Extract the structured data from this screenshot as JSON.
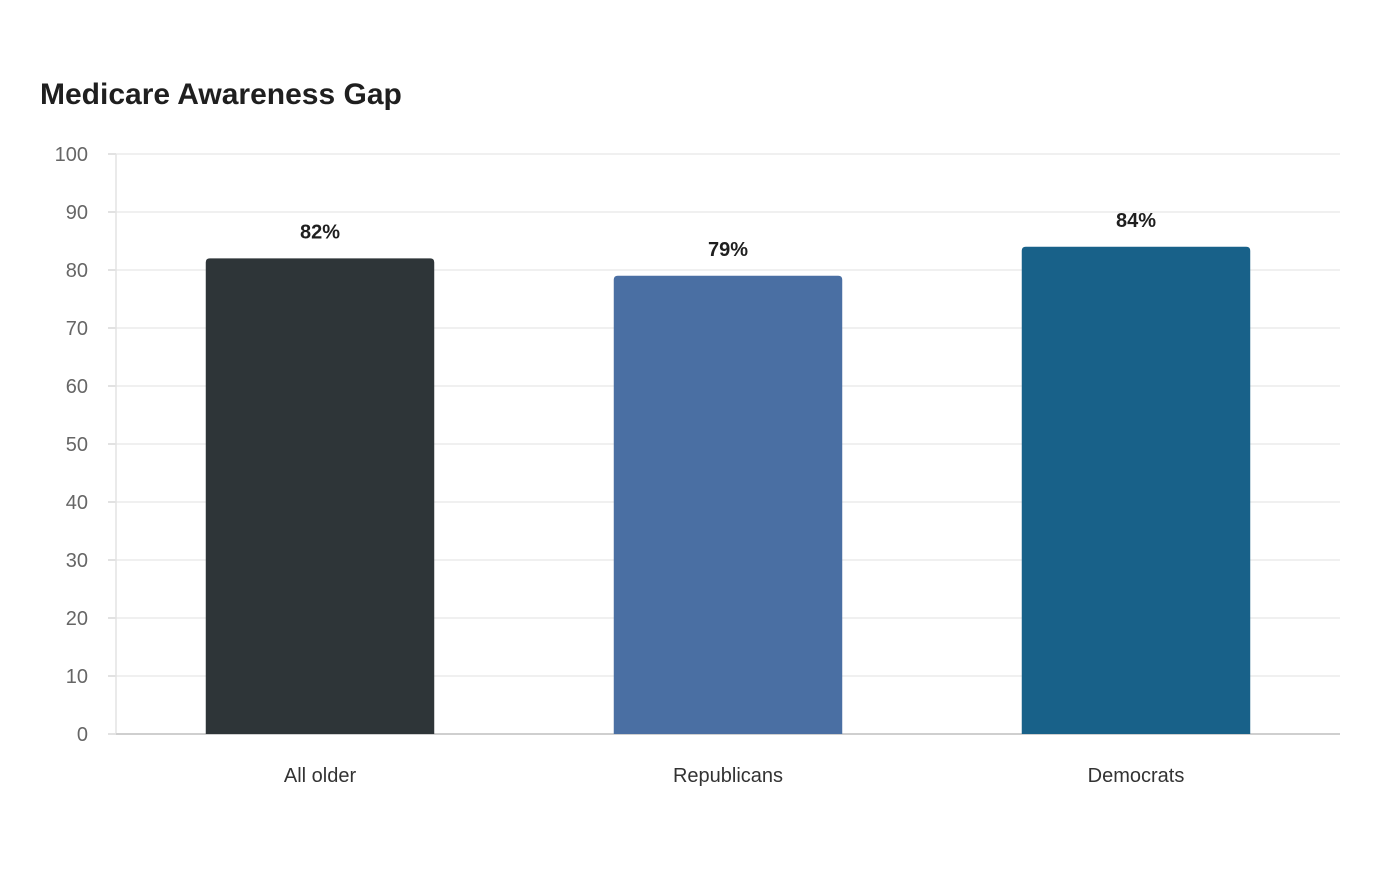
{
  "chart_data": {
    "type": "bar",
    "title": "Medicare Awareness Gap",
    "xlabel": "",
    "ylabel": "",
    "categories": [
      "All older",
      "Republicans",
      "Democrats"
    ],
    "values": [
      82,
      79,
      84
    ],
    "value_labels": [
      "82%",
      "79%",
      "84%"
    ],
    "colors": [
      "#2e3538",
      "#4a6fa3",
      "#186189"
    ],
    "ylim": [
      0,
      100
    ],
    "yticks": [
      0,
      10,
      20,
      30,
      40,
      50,
      60,
      70,
      80,
      90,
      100
    ],
    "grid": true,
    "legend": "none"
  }
}
